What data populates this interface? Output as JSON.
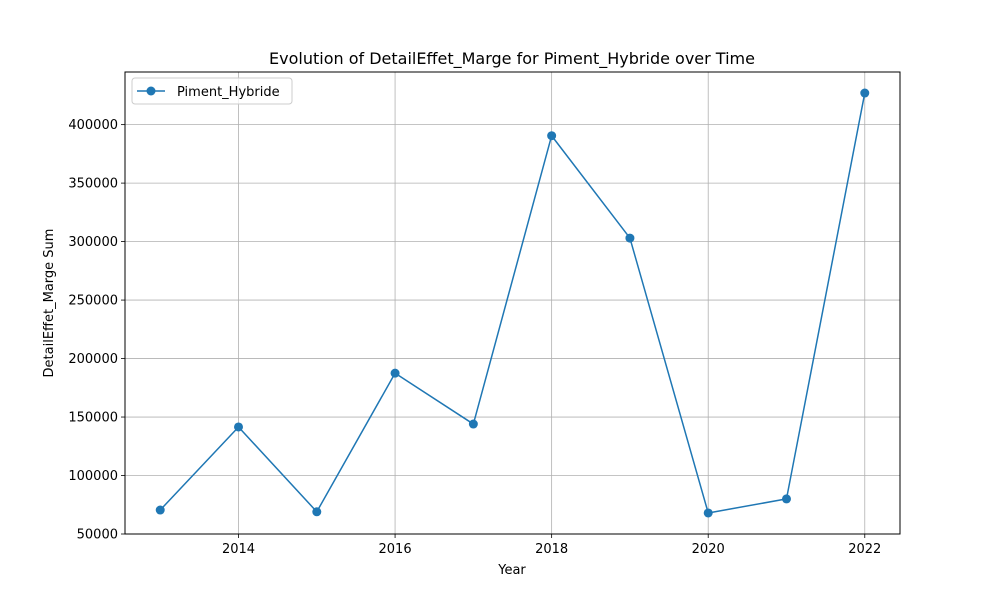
{
  "chart_data": {
    "type": "line",
    "title": "Evolution of DetailEffet_Marge for Piment_Hybride over Time",
    "xlabel": "Year",
    "ylabel": "DetailEffet_Marge Sum",
    "x": [
      2013,
      2014,
      2015,
      2016,
      2017,
      2018,
      2019,
      2020,
      2021,
      2022
    ],
    "series": [
      {
        "name": "Piment_Hybride",
        "color": "#1f77b4",
        "marker": "circle",
        "values": [
          70500,
          141500,
          69000,
          187500,
          144000,
          390500,
          303000,
          68000,
          80000,
          427000
        ]
      }
    ],
    "xlim": [
      2012.55,
      2022.45
    ],
    "ylim": [
      50000,
      445000
    ],
    "xticks": [
      2014,
      2016,
      2018,
      2020,
      2022
    ],
    "xtick_labels": [
      "2014",
      "2016",
      "2018",
      "2020",
      "2022"
    ],
    "yticks": [
      50000,
      100000,
      150000,
      200000,
      250000,
      300000,
      350000,
      400000
    ],
    "ytick_labels": [
      "50000",
      "100000",
      "150000",
      "200000",
      "250000",
      "300000",
      "350000",
      "400000"
    ],
    "grid": true,
    "legend_position": "top-left"
  }
}
